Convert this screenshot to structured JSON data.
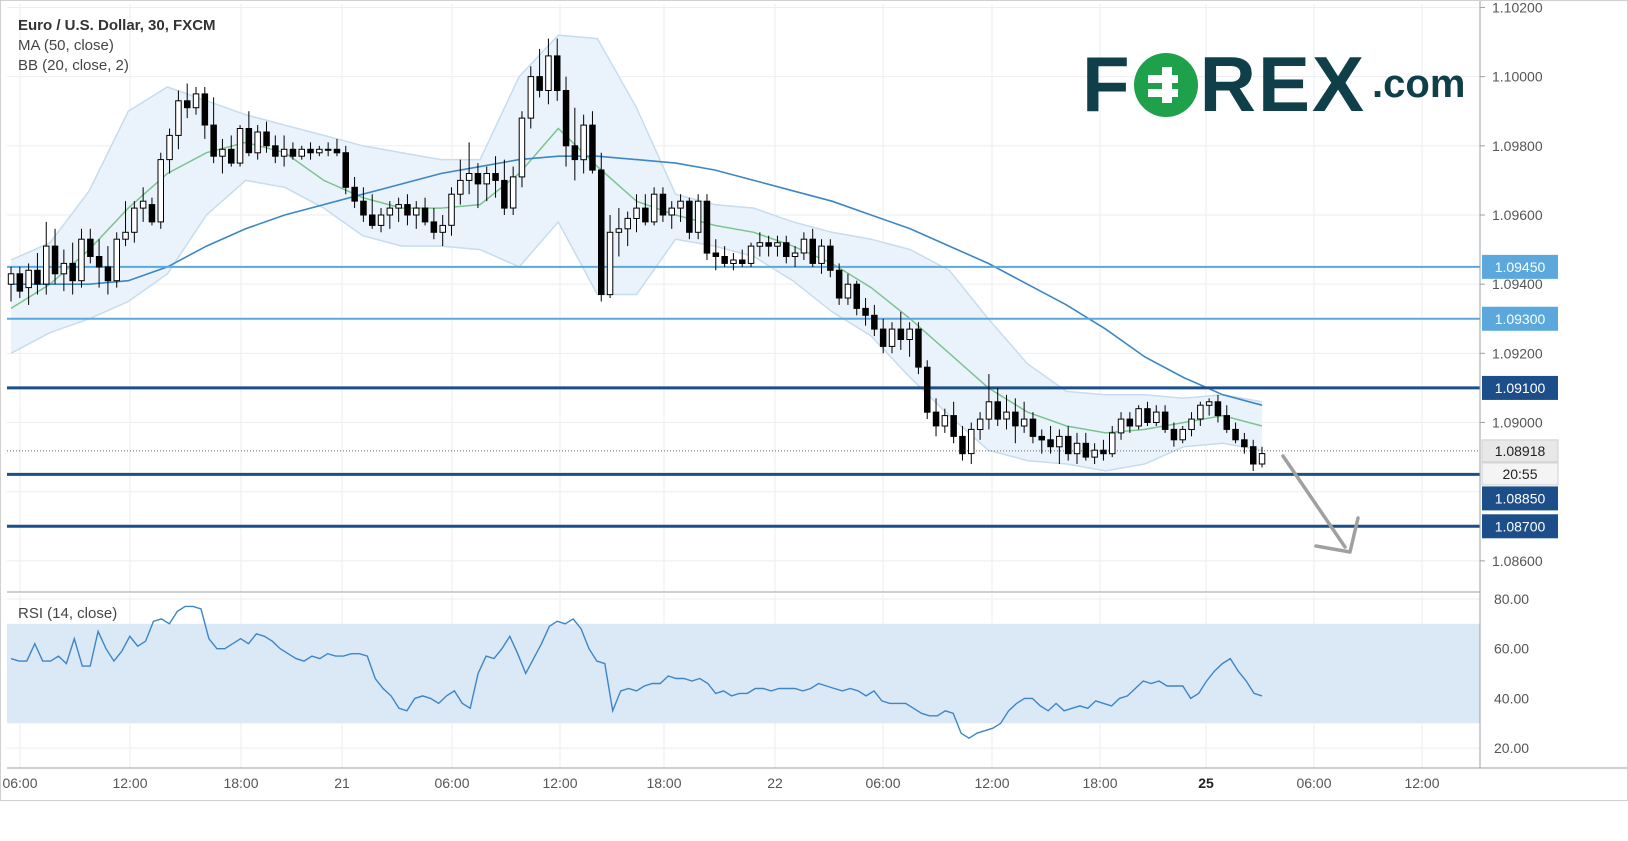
{
  "header": {
    "title": "Euro / U.S. Dollar, 30, FXCM",
    "ma_label": "MA (50, close)",
    "bb_label": "BB (20, close, 2)",
    "rsi_label": "RSI (14, close)"
  },
  "logo": {
    "part1": "F",
    "part2": "REX",
    "part3": ".com"
  },
  "colors": {
    "level_light": "#5aa8dc",
    "level_dark": "#1c4f8a",
    "ma": "#3d86c6",
    "bb_mid": "#7bc48e",
    "bb_band": "#c7dcec",
    "bb_fill": "#eaf3fb",
    "rsi": "#3d86c6",
    "rsi_band": "#dbe9f7",
    "candle_up": "#ffffff",
    "candle_down": "#000000",
    "arrow": "#a0a0a0"
  },
  "chart_data": {
    "type": "candlestick",
    "symbol": "Euro / U.S. Dollar",
    "timeframe": "30",
    "source": "FXCM",
    "price_axis": {
      "range": [
        1.0851,
        1.1021
      ],
      "tick_labels": [
        "1.10200",
        "1.10000",
        "1.09800",
        "1.09600",
        "1.09400",
        "1.09200",
        "1.09000",
        "1.08600"
      ]
    },
    "time_axis": {
      "tick_labels": [
        "06:00",
        "12:00",
        "18:00",
        "21",
        "06:00",
        "12:00",
        "18:00",
        "22",
        "06:00",
        "12:00",
        "18:00",
        "25",
        "06:00",
        "12:00"
      ],
      "bold_tick": "25"
    },
    "current_price": "1.08918",
    "countdown": "20:55",
    "levels": [
      {
        "label": "1.09450",
        "value": 1.0945,
        "style": "light"
      },
      {
        "label": "1.09300",
        "value": 1.093,
        "style": "light"
      },
      {
        "label": "1.09100",
        "value": 1.091,
        "style": "dark"
      },
      {
        "label": "1.08850",
        "value": 1.0885,
        "style": "dark"
      },
      {
        "label": "1.08700",
        "value": 1.087,
        "style": "dark"
      }
    ],
    "candles": [
      [
        1.094,
        1.0945,
        1.0935,
        1.0943
      ],
      [
        1.0943,
        1.0945,
        1.0936,
        1.0938
      ],
      [
        1.0939,
        1.0946,
        1.0934,
        1.0944
      ],
      [
        1.0944,
        1.0949,
        1.0937,
        1.094
      ],
      [
        1.094,
        1.0958,
        1.0937,
        1.0951
      ],
      [
        1.0951,
        1.0956,
        1.094,
        1.0943
      ],
      [
        1.0943,
        1.095,
        1.0938,
        1.0946
      ],
      [
        1.0946,
        1.0952,
        1.0937,
        1.0941
      ],
      [
        1.0941,
        1.0956,
        1.0939,
        1.0953
      ],
      [
        1.0953,
        1.0956,
        1.0946,
        1.0948
      ],
      [
        1.0948,
        1.0953,
        1.0939,
        1.0945
      ],
      [
        1.0945,
        1.0951,
        1.0937,
        1.0941
      ],
      [
        1.0941,
        1.0955,
        1.0939,
        1.0953
      ],
      [
        1.0953,
        1.0964,
        1.0951,
        1.0955
      ],
      [
        1.0955,
        1.0964,
        1.0952,
        1.0962
      ],
      [
        1.0962,
        1.0968,
        1.0958,
        1.0964
      ],
      [
        1.0963,
        1.0965,
        1.0957,
        1.0958
      ],
      [
        1.0958,
        1.0978,
        1.0956,
        1.0976
      ],
      [
        1.0976,
        1.0985,
        1.0972,
        1.0983
      ],
      [
        1.0983,
        1.0996,
        1.0979,
        1.0993
      ],
      [
        1.0993,
        1.0998,
        1.0988,
        1.0991
      ],
      [
        1.0991,
        1.0997,
        1.0989,
        1.0995
      ],
      [
        1.0995,
        1.0997,
        1.0982,
        1.0986
      ],
      [
        1.0986,
        1.0994,
        1.0975,
        1.0977
      ],
      [
        1.0977,
        1.0982,
        1.0972,
        1.0979
      ],
      [
        1.0979,
        1.0983,
        1.0974,
        1.0975
      ],
      [
        1.0975,
        1.0986,
        1.0974,
        1.0985
      ],
      [
        1.0985,
        1.099,
        1.0977,
        1.0978
      ],
      [
        1.0978,
        1.0986,
        1.0976,
        1.0984
      ],
      [
        1.0984,
        1.0987,
        1.0978,
        1.098
      ],
      [
        1.098,
        1.0983,
        1.0975,
        1.0977
      ],
      [
        1.0977,
        1.0983,
        1.0974,
        1.0979
      ],
      [
        1.0979,
        1.0981,
        1.0976,
        1.0977
      ],
      [
        1.0977,
        1.098,
        1.0976,
        1.0979
      ],
      [
        1.0979,
        1.0981,
        1.0976,
        1.0978
      ],
      [
        1.0978,
        1.098,
        1.0977,
        1.0979
      ],
      [
        1.0979,
        1.0981,
        1.0977,
        1.0979
      ],
      [
        1.0979,
        1.0982,
        1.0977,
        1.0978
      ],
      [
        1.0978,
        1.098,
        1.0966,
        1.0968
      ],
      [
        1.0968,
        1.0971,
        1.0962,
        1.0964
      ],
      [
        1.0964,
        1.0968,
        1.0958,
        1.096
      ],
      [
        1.096,
        1.0966,
        1.0956,
        1.0957
      ],
      [
        1.0957,
        1.0962,
        1.0955,
        1.096
      ],
      [
        1.096,
        1.0964,
        1.0956,
        1.0962
      ],
      [
        1.0962,
        1.0965,
        1.0958,
        1.0963
      ],
      [
        1.0963,
        1.0966,
        1.0957,
        1.096
      ],
      [
        1.096,
        1.0964,
        1.0956,
        1.0962
      ],
      [
        1.0962,
        1.0965,
        1.0957,
        1.0958
      ],
      [
        1.0958,
        1.0962,
        1.0953,
        1.0955
      ],
      [
        1.0955,
        1.096,
        1.0951,
        1.0957
      ],
      [
        1.0957,
        1.0968,
        1.0954,
        1.0966
      ],
      [
        1.0966,
        1.0976,
        1.0963,
        1.097
      ],
      [
        1.097,
        1.0981,
        1.0966,
        1.0972
      ],
      [
        1.0972,
        1.0975,
        1.0962,
        1.0969
      ],
      [
        1.0969,
        1.0974,
        1.0964,
        1.0972
      ],
      [
        1.0972,
        1.0977,
        1.0965,
        1.097
      ],
      [
        1.097,
        1.0976,
        1.096,
        1.0962
      ],
      [
        1.0962,
        1.0974,
        1.096,
        1.0971
      ],
      [
        1.0971,
        1.099,
        1.0968,
        1.0988
      ],
      [
        1.0988,
        1.1003,
        1.0985,
        1.1
      ],
      [
        1.1,
        1.1008,
        1.0994,
        1.0996
      ],
      [
        1.0996,
        1.1011,
        1.0992,
        1.1006
      ],
      [
        1.1006,
        1.1011,
        1.0993,
        1.0996
      ],
      [
        1.0996,
        1.1,
        1.0974,
        1.098
      ],
      [
        1.098,
        1.0991,
        1.097,
        1.0976
      ],
      [
        1.0976,
        1.0989,
        1.0972,
        1.0986
      ],
      [
        1.0986,
        1.099,
        1.0972,
        1.0973
      ],
      [
        1.0973,
        1.0978,
        1.0935,
        1.0937
      ],
      [
        1.0937,
        1.096,
        1.0936,
        1.0955
      ],
      [
        1.0955,
        1.0962,
        1.0948,
        1.0956
      ],
      [
        1.0956,
        1.0961,
        1.0951,
        1.0959
      ],
      [
        1.0959,
        1.0966,
        1.0955,
        1.0962
      ],
      [
        1.0962,
        1.0966,
        1.0957,
        1.0958
      ],
      [
        1.0958,
        1.0968,
        1.0957,
        1.0966
      ],
      [
        1.0966,
        1.0968,
        1.0958,
        1.096
      ],
      [
        1.096,
        1.0964,
        1.0956,
        1.0962
      ],
      [
        1.0962,
        1.0966,
        1.0958,
        1.0964
      ],
      [
        1.0964,
        1.0965,
        1.0953,
        1.0955
      ],
      [
        1.0955,
        1.0966,
        1.0953,
        1.0964
      ],
      [
        1.0964,
        1.0966,
        1.0947,
        1.0949
      ],
      [
        1.0949,
        1.0953,
        1.0944,
        1.0948
      ],
      [
        1.0948,
        1.0951,
        1.0945,
        1.0946
      ],
      [
        1.0946,
        1.0949,
        1.0944,
        1.0947
      ],
      [
        1.0947,
        1.095,
        1.0945,
        1.0946
      ],
      [
        1.0946,
        1.0952,
        1.0945,
        1.0951
      ],
      [
        1.0951,
        1.0955,
        1.0948,
        1.0952
      ],
      [
        1.0952,
        1.0954,
        1.0948,
        1.0951
      ],
      [
        1.0951,
        1.0954,
        1.0948,
        1.0952
      ],
      [
        1.0952,
        1.0954,
        1.0946,
        1.0948
      ],
      [
        1.0948,
        1.0951,
        1.0945,
        1.0949
      ],
      [
        1.0949,
        1.0955,
        1.0947,
        1.0953
      ],
      [
        1.0953,
        1.0956,
        1.0945,
        1.0946
      ],
      [
        1.0946,
        1.0953,
        1.0943,
        1.0951
      ],
      [
        1.0951,
        1.0953,
        1.0942,
        1.0944
      ],
      [
        1.0944,
        1.0946,
        1.0934,
        1.0936
      ],
      [
        1.0936,
        1.0943,
        1.0934,
        1.094
      ],
      [
        1.094,
        1.0941,
        1.0931,
        1.0933
      ],
      [
        1.0933,
        1.0936,
        1.0928,
        1.0931
      ],
      [
        1.0931,
        1.0934,
        1.0925,
        1.0927
      ],
      [
        1.0927,
        1.093,
        1.092,
        1.0922
      ],
      [
        1.0922,
        1.0929,
        1.092,
        1.0927
      ],
      [
        1.0927,
        1.0932,
        1.0921,
        1.0924
      ],
      [
        1.0924,
        1.0929,
        1.0919,
        1.0927
      ],
      [
        1.0927,
        1.0929,
        1.0914,
        1.0916
      ],
      [
        1.0916,
        1.0918,
        1.0901,
        1.0903
      ],
      [
        1.0903,
        1.0907,
        1.0896,
        1.0899
      ],
      [
        1.0899,
        1.0904,
        1.0897,
        1.0902
      ],
      [
        1.0902,
        1.0906,
        1.0894,
        1.0896
      ],
      [
        1.0896,
        1.0899,
        1.0889,
        1.0891
      ],
      [
        1.0891,
        1.09,
        1.0888,
        1.0898
      ],
      [
        1.0898,
        1.0903,
        1.0895,
        1.0901
      ],
      [
        1.0901,
        1.0914,
        1.0898,
        1.0906
      ],
      [
        1.0906,
        1.091,
        1.0899,
        1.0901
      ],
      [
        1.0901,
        1.0908,
        1.0898,
        1.0903
      ],
      [
        1.0903,
        1.0907,
        1.0894,
        1.0899
      ],
      [
        1.0899,
        1.0906,
        1.0897,
        1.0901
      ],
      [
        1.0901,
        1.0903,
        1.0894,
        1.0896
      ],
      [
        1.0896,
        1.0898,
        1.0891,
        1.0895
      ],
      [
        1.0895,
        1.0899,
        1.0891,
        1.0893
      ],
      [
        1.0893,
        1.0898,
        1.0888,
        1.0896
      ],
      [
        1.0896,
        1.0899,
        1.0889,
        1.0891
      ],
      [
        1.0891,
        1.0897,
        1.0888,
        1.0894
      ],
      [
        1.0894,
        1.0897,
        1.0889,
        1.089
      ],
      [
        1.089,
        1.0894,
        1.0888,
        1.0892
      ],
      [
        1.0892,
        1.0895,
        1.0889,
        1.0891
      ],
      [
        1.0891,
        1.0899,
        1.089,
        1.0897
      ],
      [
        1.0897,
        1.0903,
        1.0895,
        1.0901
      ],
      [
        1.0901,
        1.0903,
        1.0897,
        1.0899
      ],
      [
        1.0899,
        1.0905,
        1.0898,
        1.0904
      ],
      [
        1.0904,
        1.0906,
        1.0899,
        1.09
      ],
      [
        1.09,
        1.0905,
        1.0899,
        1.0903
      ],
      [
        1.0903,
        1.0905,
        1.0897,
        1.0898
      ],
      [
        1.0898,
        1.09,
        1.0893,
        1.0895
      ],
      [
        1.0895,
        1.0899,
        1.0894,
        1.0898
      ],
      [
        1.0898,
        1.0903,
        1.0896,
        1.0901
      ],
      [
        1.0901,
        1.0906,
        1.0899,
        1.0905
      ],
      [
        1.0905,
        1.0907,
        1.0902,
        1.0906
      ],
      [
        1.0906,
        1.0908,
        1.09,
        1.0902
      ],
      [
        1.0902,
        1.0905,
        1.0897,
        1.0898
      ],
      [
        1.0898,
        1.09,
        1.0894,
        1.0895
      ],
      [
        1.0895,
        1.0897,
        1.0891,
        1.0893
      ],
      [
        1.0893,
        1.0895,
        1.0886,
        1.0888
      ],
      [
        1.0888,
        1.0893,
        1.0887,
        1.0891
      ]
    ],
    "ma50": [
      1.094,
      1.094,
      1.094,
      1.0941,
      1.0945,
      1.0951,
      1.0956,
      1.096,
      1.0963,
      1.0966,
      1.0969,
      1.0972,
      1.0974,
      1.0976,
      1.0977,
      1.0977,
      1.0976,
      1.0975,
      1.0973,
      1.097,
      1.0967,
      1.0964,
      1.096,
      1.0956,
      1.0951,
      1.0946,
      1.094,
      1.0934,
      1.0927,
      1.0919,
      1.0913,
      1.0908,
      1.0905
    ],
    "bb_mid": [
      1.0933,
      1.094,
      1.095,
      1.0962,
      1.0972,
      1.0978,
      1.0981,
      1.0978,
      1.097,
      1.0965,
      1.0962,
      1.0962,
      1.0963,
      1.0972,
      1.0985,
      1.0974,
      1.0964,
      1.096,
      1.0957,
      1.0955,
      1.0951,
      1.0946,
      1.0939,
      1.093,
      1.092,
      1.091,
      1.0903,
      1.0899,
      1.0897,
      1.0898,
      1.09,
      1.0902,
      1.0899
    ],
    "bb_upper": [
      1.0947,
      1.0952,
      1.0967,
      1.099,
      1.0997,
      1.0993,
      1.0989,
      1.0986,
      1.0983,
      1.098,
      1.0978,
      1.0976,
      1.0976,
      1.1,
      1.1012,
      1.1011,
      1.0991,
      1.0966,
      1.0963,
      1.0962,
      1.0958,
      1.0955,
      1.0953,
      1.095,
      1.0944,
      1.093,
      1.0917,
      1.0909,
      1.0908,
      1.0908,
      1.0907,
      1.0908,
      1.0906
    ],
    "bb_lower": [
      1.092,
      1.0926,
      1.093,
      1.0935,
      1.0943,
      1.096,
      1.097,
      1.0968,
      1.0962,
      1.0954,
      1.0951,
      1.0951,
      1.095,
      1.0945,
      1.0958,
      1.0937,
      1.0937,
      1.0953,
      1.0951,
      1.0948,
      1.0941,
      1.0932,
      1.0925,
      1.0913,
      1.0902,
      1.0892,
      1.0889,
      1.0888,
      1.0886,
      1.0888,
      1.0893,
      1.0894,
      1.0892
    ],
    "rsi": {
      "axis_labels": [
        "80.00",
        "60.00",
        "40.00",
        "20.00"
      ],
      "range": [
        12,
        82
      ],
      "band": [
        30,
        70
      ],
      "values": [
        56,
        55,
        55,
        62,
        55,
        55,
        57,
        54,
        64,
        53,
        53,
        67,
        60,
        55,
        59,
        65,
        61,
        63,
        71,
        72,
        70,
        75,
        77,
        77,
        76,
        64,
        60,
        60,
        62,
        64,
        62,
        66,
        65,
        63,
        60,
        58,
        56,
        55,
        57,
        56,
        58,
        57,
        57,
        58,
        58,
        57,
        48,
        44,
        41,
        36,
        35,
        40,
        41,
        40,
        38,
        41,
        43,
        38,
        36,
        50,
        57,
        56,
        60,
        65,
        58,
        50,
        56,
        62,
        69,
        71,
        70,
        72,
        68,
        60,
        55,
        54,
        35,
        43,
        44,
        43,
        45,
        46,
        46,
        49,
        48,
        48,
        47,
        48,
        46,
        42,
        43,
        41,
        42,
        42,
        44,
        44,
        43,
        44,
        44,
        44,
        43,
        44,
        46,
        45,
        44,
        43,
        44,
        43,
        41,
        43,
        39,
        38,
        38,
        38,
        36,
        34,
        33,
        33,
        35,
        34,
        26,
        24,
        26,
        27,
        28,
        30,
        35,
        38,
        40,
        40,
        37,
        35,
        38,
        35,
        36,
        37,
        36,
        39,
        38,
        37,
        40,
        41,
        44,
        47,
        46,
        47,
        45,
        45,
        45,
        40,
        42,
        47,
        51,
        54,
        56,
        51,
        47,
        42,
        41
      ]
    }
  }
}
